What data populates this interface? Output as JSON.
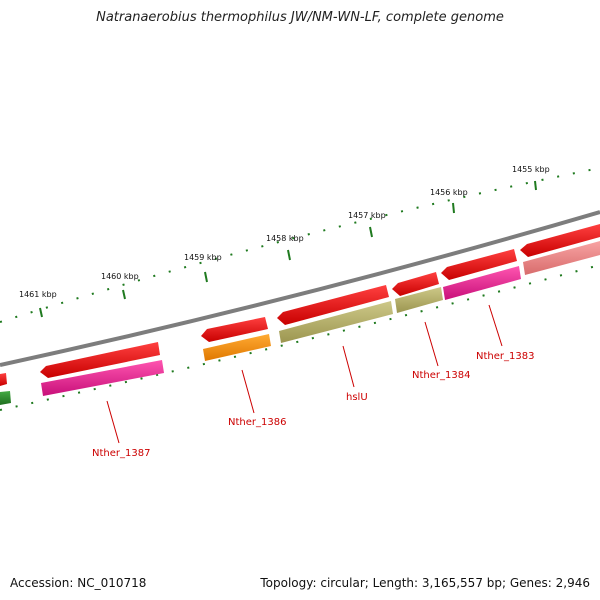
{
  "title": "Natranaerobius thermophilus JW/NM-WN-LF, complete genome",
  "footer": {
    "accession": "Accession: NC_010718",
    "summary": "Topology: circular; Length: 3,165,557 bp; Genes: 2,946"
  },
  "colors": {
    "backbone": "#7d7d7d",
    "tick": "#1f7a1f",
    "cds": "#e00000",
    "orange": "#ff8c00",
    "olive": "#b3ad67",
    "magenta": "#e0208c",
    "salmon": "#ee8080",
    "green": "#2e8b2e",
    "gene_label": "#cc0000"
  },
  "scale_labels": [
    "1455 kbp",
    "1456 kbp",
    "1457 kbp",
    "1458 kbp",
    "1459 kbp",
    "1460 kbp",
    "1461 kbp"
  ],
  "gene_labels": [
    "Nther_1383",
    "Nther_1384",
    "hslU",
    "Nther_1386",
    "Nther_1387"
  ]
}
